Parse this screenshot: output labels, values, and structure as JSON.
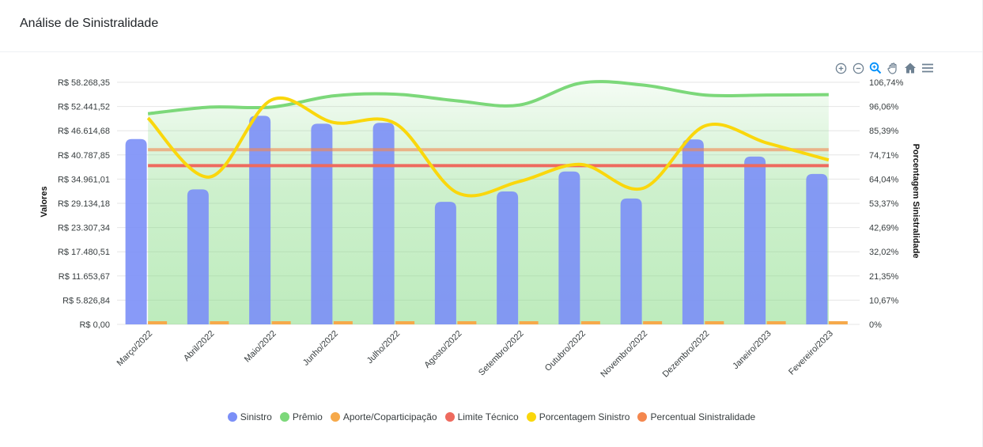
{
  "card": {
    "title": "Análise de Sinistralidade"
  },
  "toolbar": {
    "tools": [
      {
        "name": "zoom-in-icon"
      },
      {
        "name": "zoom-out-icon"
      },
      {
        "name": "zoom-selection-icon"
      },
      {
        "name": "pan-icon"
      },
      {
        "name": "reset-home-icon"
      },
      {
        "name": "menu-icon"
      }
    ]
  },
  "colors": {
    "sinistro": "#7b8ff7",
    "premio": "#7cd87a",
    "aporte": "#f6a94a",
    "limite": "#ee6a5e",
    "porcentagem": "#fad70c",
    "percentual": "#f4874e"
  },
  "chart_data": {
    "type": "bar",
    "categories": [
      "Março/2022",
      "Abril/2022",
      "Maio/2022",
      "Junho/2022",
      "Julho/2022",
      "Agosto/2022",
      "Setembro/2022",
      "Outubro/2022",
      "Novembro/2022",
      "Dezembro/2022",
      "Janeiro/2023",
      "Fevereiro/2023"
    ],
    "ylabel": "Valores",
    "y2label": "Porcentagem Sinistralidade",
    "ylim": [
      0,
      58268.35
    ],
    "y2lim": [
      0,
      106.74
    ],
    "y_ticks": [
      "R$ 58.268,35",
      "R$ 52.441,52",
      "R$ 46.614,68",
      "R$ 40.787,85",
      "R$ 34.961,01",
      "R$ 29.134,18",
      "R$ 23.307,34",
      "R$ 17.480,51",
      "R$ 11.653,67",
      "R$ 5.826,84",
      "R$ 0,00"
    ],
    "y2_ticks": [
      "106,74%",
      "96,06%",
      "85,39%",
      "74,71%",
      "64,04%",
      "53,37%",
      "42,69%",
      "32,02%",
      "21,35%",
      "10,67%",
      "0%"
    ],
    "grid": true,
    "legend_position": "bottom",
    "series": [
      {
        "name": "Sinistro",
        "kind": "bar",
        "axis": "left",
        "values": [
          44600,
          32500,
          50200,
          48300,
          48500,
          29500,
          32000,
          36800,
          30300,
          44500,
          40400,
          36200
        ]
      },
      {
        "name": "Prêmio",
        "kind": "area",
        "axis": "left",
        "values": [
          50700,
          52300,
          52300,
          55000,
          55400,
          53800,
          52800,
          58100,
          57600,
          55200,
          55200,
          55300
        ]
      },
      {
        "name": "Aporte/Coparticipação",
        "kind": "bar",
        "axis": "left",
        "values": [
          700,
          700,
          700,
          700,
          700,
          700,
          700,
          700,
          700,
          700,
          700,
          700
        ]
      },
      {
        "name": "Limite Técnico",
        "kind": "line",
        "axis": "right",
        "values": [
          70,
          70,
          70,
          70,
          70,
          70,
          70,
          70,
          70,
          70,
          70,
          70
        ]
      },
      {
        "name": "Porcentagem Sinistro",
        "kind": "line",
        "axis": "right",
        "values": [
          91,
          65,
          99,
          89,
          88.5,
          58,
          63,
          70.5,
          60,
          87.5,
          80,
          72.5
        ]
      },
      {
        "name": "Percentual Sinistralidade",
        "kind": "line",
        "axis": "right",
        "values": [
          77,
          77,
          77,
          77,
          77,
          77,
          77,
          77,
          77,
          77,
          77,
          77
        ]
      }
    ]
  },
  "legend": {
    "items": [
      {
        "label": "Sinistro",
        "color": "#7b8ff7"
      },
      {
        "label": "Prêmio",
        "color": "#7cd87a"
      },
      {
        "label": "Aporte/Coparticipação",
        "color": "#f6a94a"
      },
      {
        "label": "Limite Técnico",
        "color": "#ee6a5e"
      },
      {
        "label": "Porcentagem Sinistro",
        "color": "#fad70c"
      },
      {
        "label": "Percentual Sinistralidade",
        "color": "#f4874e"
      }
    ]
  }
}
